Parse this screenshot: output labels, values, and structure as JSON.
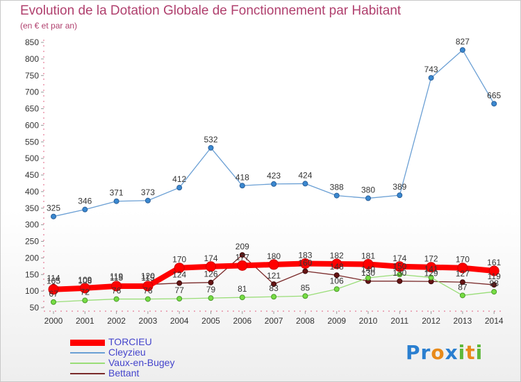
{
  "title": "Evolution de la Dotation Globale de Fonctionnement par Habitant",
  "subtitle": "(en € et par an)",
  "logo": {
    "text": "Proxiti",
    "colors": [
      "#2a7fd0",
      "#e88a1a",
      "#5db83a"
    ]
  },
  "chart_data": {
    "type": "line",
    "x": [
      "2000",
      "2001",
      "2002",
      "2003",
      "2004",
      "2005",
      "2006",
      "2007",
      "2008",
      "2009",
      "2010",
      "2011",
      "2012",
      "2013",
      "2014"
    ],
    "ylim": [
      50,
      850
    ],
    "yticks": [
      50,
      100,
      150,
      200,
      250,
      300,
      350,
      400,
      450,
      500,
      550,
      600,
      650,
      700,
      750,
      800,
      850
    ],
    "grid": false,
    "legend_position": "bottom-left",
    "series": [
      {
        "name": "TORCIEU",
        "color": "#ff0000",
        "values": [
          105,
          109,
          115,
          115,
          170,
          174,
          177,
          180,
          183,
          182,
          181,
          174,
          172,
          170,
          161
        ],
        "labels": [
          "105",
          "109",
          "115",
          "115",
          "170",
          "174",
          "177",
          "180",
          "183",
          "182",
          "181",
          "174",
          "172",
          "170",
          "161"
        ]
      },
      {
        "name": "Cleyzieu",
        "color": "#6a9fd4",
        "values": [
          325,
          346,
          371,
          373,
          412,
          532,
          418,
          423,
          424,
          388,
          380,
          389,
          743,
          827,
          665
        ],
        "labels": [
          "325",
          "346",
          "371",
          "373",
          "412",
          "532",
          "418",
          "423",
          "424",
          "388",
          "380",
          "389",
          "743",
          "827",
          "665"
        ]
      },
      {
        "name": "Vaux-en-Bugey",
        "color": "#99dd77",
        "values": [
          67,
          72,
          76,
          76,
          77,
          79,
          81,
          83,
          85,
          106,
          140,
          150,
          141,
          87,
          98
        ],
        "labels": [
          "67",
          "72",
          "76",
          "76",
          "77",
          "79",
          "81",
          "83",
          "85",
          "106",
          "140",
          "150",
          "141",
          "87",
          "98"
        ]
      },
      {
        "name": "Bettant",
        "color": "#7a2a2a",
        "values": [
          114,
          106,
          119,
          120,
          124,
          126,
          209,
          121,
          160,
          148,
          130,
          130,
          129,
          127,
          119
        ],
        "labels": [
          "114",
          "106",
          "119",
          "120",
          "124",
          "126",
          "209",
          "121",
          "160",
          "148",
          "130",
          "130",
          "129",
          "127",
          "119"
        ]
      }
    ]
  }
}
